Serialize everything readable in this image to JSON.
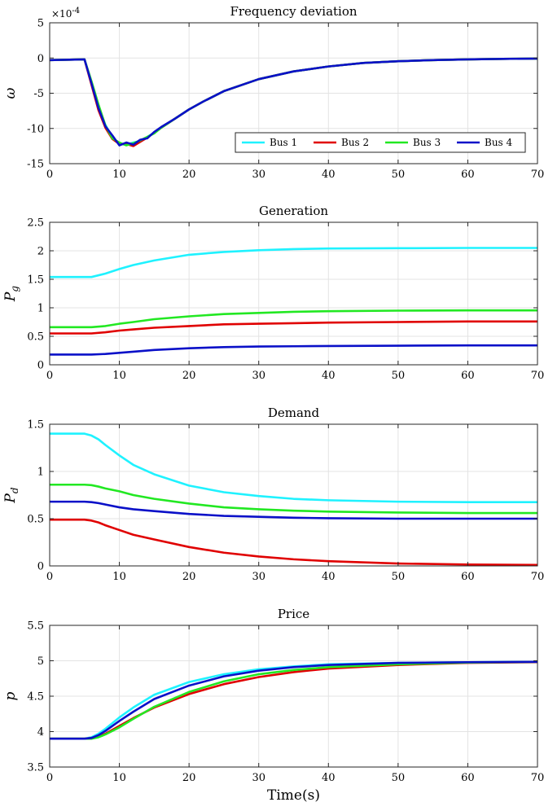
{
  "colors": {
    "Bus 1": "#1ff2ff",
    "Bus 2": "#e00000",
    "Bus 3": "#22e822",
    "Bus 4": "#0a10c8"
  },
  "chart_data": [
    {
      "type": "line",
      "title": "Frequency deviation",
      "ylabel": "ω",
      "xlabel": "",
      "multiplier": "×10",
      "multiplier_exp": "-4",
      "xlim": [
        0,
        70
      ],
      "ylim": [
        -15,
        5
      ],
      "xticks": [
        0,
        10,
        20,
        30,
        40,
        50,
        60,
        70
      ],
      "yticks": [
        -15,
        -10,
        -5,
        0,
        5
      ],
      "grid": true,
      "legend": {
        "placement": "bottom-right",
        "orientation": "horizontal",
        "entries": [
          "Bus 1",
          "Bus 2",
          "Bus 3",
          "Bus 4"
        ]
      },
      "series": [
        {
          "name": "Bus 1",
          "x": [
            0,
            5,
            6,
            7,
            8,
            9,
            10,
            11,
            12,
            13,
            14,
            15,
            16,
            18,
            20,
            22,
            25,
            30,
            35,
            40,
            45,
            50,
            55,
            60,
            65,
            70
          ],
          "y": [
            -0.3,
            -0.2,
            -3.5,
            -7.0,
            -9.5,
            -11.3,
            -12.2,
            -12.3,
            -12.0,
            -11.8,
            -11.2,
            -10.6,
            -9.9,
            -8.6,
            -7.3,
            -6.2,
            -4.7,
            -3.0,
            -1.9,
            -1.2,
            -0.7,
            -0.45,
            -0.3,
            -0.2,
            -0.12,
            -0.08
          ]
        },
        {
          "name": "Bus 2",
          "x": [
            0,
            5,
            6,
            7,
            8,
            9,
            10,
            11,
            12,
            13,
            14,
            15,
            16,
            18,
            20,
            22,
            25,
            30,
            35,
            40,
            45,
            50,
            55,
            60,
            65,
            70
          ],
          "y": [
            -0.3,
            -0.2,
            -3.8,
            -7.4,
            -9.9,
            -11.5,
            -12.2,
            -12.2,
            -12.5,
            -11.9,
            -11.3,
            -10.6,
            -9.9,
            -8.6,
            -7.3,
            -6.2,
            -4.7,
            -3.0,
            -1.9,
            -1.2,
            -0.7,
            -0.45,
            -0.3,
            -0.2,
            -0.12,
            -0.08
          ]
        },
        {
          "name": "Bus 3",
          "x": [
            0,
            5,
            6,
            7,
            8,
            9,
            10,
            11,
            12,
            13,
            14,
            15,
            16,
            18,
            20,
            22,
            25,
            30,
            35,
            40,
            45,
            50,
            55,
            60,
            65,
            70
          ],
          "y": [
            -0.3,
            -0.2,
            -3.3,
            -6.6,
            -9.6,
            -11.4,
            -12.0,
            -12.4,
            -12.1,
            -11.7,
            -11.2,
            -10.7,
            -9.9,
            -8.6,
            -7.3,
            -6.2,
            -4.7,
            -3.0,
            -1.9,
            -1.2,
            -0.7,
            -0.45,
            -0.3,
            -0.2,
            -0.12,
            -0.08
          ]
        },
        {
          "name": "Bus 4",
          "x": [
            0,
            5,
            6,
            7,
            8,
            9,
            10,
            11,
            12,
            13,
            14,
            15,
            16,
            18,
            20,
            22,
            25,
            30,
            35,
            40,
            45,
            50,
            55,
            60,
            65,
            70
          ],
          "y": [
            -0.3,
            -0.2,
            -3.6,
            -7.1,
            -9.7,
            -11.0,
            -12.4,
            -12.0,
            -12.3,
            -11.6,
            -11.4,
            -10.5,
            -9.8,
            -8.6,
            -7.3,
            -6.2,
            -4.7,
            -3.0,
            -1.9,
            -1.2,
            -0.7,
            -0.45,
            -0.3,
            -0.2,
            -0.12,
            -0.08
          ]
        }
      ]
    },
    {
      "type": "line",
      "title": "Generation",
      "ylabel": "P",
      "ylabel_sub": "g",
      "xlabel": "",
      "xlim": [
        0,
        70
      ],
      "ylim": [
        0,
        2.5
      ],
      "xticks": [
        0,
        10,
        20,
        30,
        40,
        50,
        60,
        70
      ],
      "yticks": [
        0,
        0.5,
        1,
        1.5,
        2,
        2.5
      ],
      "grid": true,
      "series": [
        {
          "name": "Bus 1",
          "x": [
            0,
            6,
            8,
            10,
            12,
            15,
            20,
            25,
            30,
            35,
            40,
            50,
            60,
            70
          ],
          "y": [
            1.54,
            1.54,
            1.6,
            1.68,
            1.75,
            1.83,
            1.93,
            1.98,
            2.01,
            2.03,
            2.04,
            2.045,
            2.05,
            2.05
          ]
        },
        {
          "name": "Bus 2",
          "x": [
            0,
            6,
            8,
            10,
            12,
            15,
            20,
            25,
            30,
            35,
            40,
            50,
            60,
            70
          ],
          "y": [
            0.55,
            0.55,
            0.57,
            0.6,
            0.62,
            0.65,
            0.68,
            0.71,
            0.72,
            0.73,
            0.74,
            0.75,
            0.76,
            0.76
          ]
        },
        {
          "name": "Bus 3",
          "x": [
            0,
            6,
            8,
            10,
            12,
            15,
            20,
            25,
            30,
            35,
            40,
            50,
            60,
            70
          ],
          "y": [
            0.66,
            0.66,
            0.68,
            0.72,
            0.75,
            0.8,
            0.85,
            0.89,
            0.91,
            0.93,
            0.94,
            0.95,
            0.955,
            0.955
          ]
        },
        {
          "name": "Bus 4",
          "x": [
            0,
            6,
            8,
            10,
            12,
            15,
            20,
            25,
            30,
            35,
            40,
            50,
            60,
            70
          ],
          "y": [
            0.18,
            0.18,
            0.19,
            0.21,
            0.23,
            0.26,
            0.29,
            0.31,
            0.32,
            0.325,
            0.33,
            0.335,
            0.34,
            0.34
          ]
        }
      ]
    },
    {
      "type": "line",
      "title": "Demand",
      "ylabel": "P",
      "ylabel_sub": "d",
      "xlabel": "",
      "xlim": [
        0,
        70
      ],
      "ylim": [
        0,
        1.5
      ],
      "xticks": [
        0,
        10,
        20,
        30,
        40,
        50,
        60,
        70
      ],
      "yticks": [
        0,
        0.5,
        1,
        1.5
      ],
      "grid": true,
      "series": [
        {
          "name": "Bus 1",
          "x": [
            0,
            5,
            6,
            7,
            8,
            10,
            12,
            15,
            20,
            25,
            30,
            35,
            40,
            50,
            60,
            70
          ],
          "y": [
            1.4,
            1.4,
            1.38,
            1.34,
            1.28,
            1.17,
            1.07,
            0.97,
            0.85,
            0.78,
            0.74,
            0.71,
            0.695,
            0.68,
            0.675,
            0.675
          ]
        },
        {
          "name": "Bus 2",
          "x": [
            0,
            5,
            6,
            7,
            8,
            10,
            12,
            15,
            20,
            25,
            30,
            35,
            40,
            50,
            60,
            70
          ],
          "y": [
            0.49,
            0.49,
            0.48,
            0.46,
            0.43,
            0.38,
            0.33,
            0.28,
            0.2,
            0.14,
            0.1,
            0.07,
            0.05,
            0.025,
            0.015,
            0.01
          ]
        },
        {
          "name": "Bus 3",
          "x": [
            0,
            5,
            6,
            7,
            8,
            10,
            12,
            15,
            20,
            25,
            30,
            35,
            40,
            50,
            60,
            70
          ],
          "y": [
            0.86,
            0.86,
            0.855,
            0.84,
            0.82,
            0.79,
            0.75,
            0.71,
            0.66,
            0.62,
            0.6,
            0.585,
            0.575,
            0.565,
            0.56,
            0.56
          ]
        },
        {
          "name": "Bus 4",
          "x": [
            0,
            5,
            6,
            7,
            8,
            10,
            12,
            15,
            20,
            25,
            30,
            35,
            40,
            50,
            60,
            70
          ],
          "y": [
            0.68,
            0.68,
            0.675,
            0.665,
            0.65,
            0.62,
            0.6,
            0.58,
            0.55,
            0.53,
            0.52,
            0.51,
            0.505,
            0.5,
            0.5,
            0.5
          ]
        }
      ]
    },
    {
      "type": "line",
      "title": "Price",
      "ylabel": "p",
      "xlabel": "Time(s)",
      "xlim": [
        0,
        70
      ],
      "ylim": [
        3.5,
        5.5
      ],
      "xticks": [
        0,
        10,
        20,
        30,
        40,
        50,
        60,
        70
      ],
      "yticks": [
        3.5,
        4,
        4.5,
        5,
        5.5
      ],
      "grid": true,
      "series": [
        {
          "name": "Bus 1",
          "x": [
            0,
            5,
            6,
            7,
            8,
            10,
            12,
            15,
            20,
            25,
            30,
            35,
            40,
            50,
            60,
            70
          ],
          "y": [
            3.9,
            3.9,
            3.92,
            3.97,
            4.04,
            4.2,
            4.34,
            4.52,
            4.7,
            4.81,
            4.88,
            4.92,
            4.95,
            4.97,
            4.98,
            4.985
          ]
        },
        {
          "name": "Bus 2",
          "x": [
            0,
            5,
            6,
            7,
            8,
            10,
            12,
            15,
            20,
            25,
            30,
            35,
            40,
            50,
            60,
            70
          ],
          "y": [
            3.9,
            3.9,
            3.91,
            3.93,
            3.97,
            4.08,
            4.19,
            4.34,
            4.53,
            4.67,
            4.77,
            4.84,
            4.89,
            4.94,
            4.97,
            4.98
          ]
        },
        {
          "name": "Bus 3",
          "x": [
            0,
            5,
            6,
            7,
            8,
            10,
            12,
            15,
            20,
            25,
            30,
            35,
            40,
            50,
            60,
            70
          ],
          "y": [
            3.9,
            3.9,
            3.9,
            3.92,
            3.96,
            4.06,
            4.18,
            4.35,
            4.56,
            4.71,
            4.81,
            4.87,
            4.91,
            4.95,
            4.975,
            4.985
          ]
        },
        {
          "name": "Bus 4",
          "x": [
            0,
            5,
            6,
            7,
            8,
            10,
            12,
            15,
            20,
            25,
            30,
            35,
            40,
            50,
            60,
            70
          ],
          "y": [
            3.9,
            3.9,
            3.91,
            3.95,
            4.01,
            4.15,
            4.28,
            4.46,
            4.65,
            4.78,
            4.86,
            4.91,
            4.94,
            4.97,
            4.98,
            4.985
          ]
        }
      ]
    }
  ]
}
